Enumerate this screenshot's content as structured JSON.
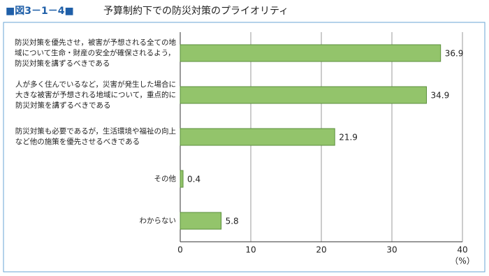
{
  "chart_data": {
    "type": "bar",
    "orientation": "horizontal",
    "title_prefix": "■図3－1－4■",
    "title": "予算制約下での防災対策のプライオリティ",
    "categories": [
      "防災対策を優先させ，被害が予想される全ての地\n域について生命・財産の安全が確保されるよう，\n防災対策を講ずるべきである",
      "人が多く住んでいるなど，災害が発生した場合に\n大きな被害が予想される地域について，重点的に\n防災対策を講ずるべきである",
      "防災対策も必要であるが，生活環境や福祉の向上\nなど他の施策を優先させるべきである",
      "その他",
      "わからない"
    ],
    "values": [
      36.9,
      34.9,
      21.9,
      0.4,
      5.8
    ],
    "color": "#93c46b",
    "xlim": [
      0,
      40
    ],
    "xticks": [
      0,
      10,
      20,
      30,
      40
    ],
    "xlabel": "（%）",
    "grid": true
  }
}
